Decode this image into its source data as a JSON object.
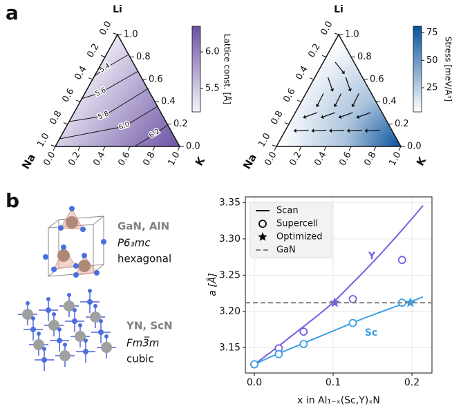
{
  "panel_labels": [
    "a",
    "b"
  ],
  "structures": [
    {
      "compounds": "GaN, AlN",
      "space_group": "P6₃mc",
      "system": "hexagonal"
    },
    {
      "compounds": "YN, ScN",
      "space_group": "Fm3̅m",
      "system": "cubic"
    }
  ],
  "chart_data": [
    {
      "type": "ternary",
      "corners": {
        "top": "Li",
        "left": "Na",
        "right": "K"
      },
      "ticks": [
        {
          "value": 0,
          "label": "0.0"
        },
        0.2,
        0.4,
        0.6,
        0.8,
        {
          "value": 1,
          "label": "1.0"
        }
      ],
      "fill": "linear",
      "colors": [
        "#f7f5fb",
        "#6a51a3"
      ],
      "contours": [
        5.4,
        5.6,
        5.8,
        {
          "value": 6.0,
          "label": "6.0"
        },
        6.2
      ],
      "colorbar": {
        "label": "Lattice const. [Å]",
        "clim": [
          5.18,
          6.35
        ],
        "ticks": [
          5.5,
          {
            "value": 6.0,
            "label": "6.0"
          }
        ]
      }
    },
    {
      "type": "ternary",
      "corners": {
        "top": "Li",
        "left": "Na",
        "right": "K"
      },
      "ticks": [
        {
          "value": 0,
          "label": "0.0"
        },
        0.2,
        0.4,
        0.6,
        0.8,
        {
          "value": 1,
          "label": "1.0"
        }
      ],
      "fill": "radial",
      "colors": [
        "#ffffff",
        "#08519c"
      ],
      "arrows": true,
      "colorbar": {
        "label": "Stress [meV/Å³]",
        "clim": [
          3,
          81
        ],
        "ticks": [
          25,
          50,
          75
        ]
      }
    },
    {
      "type": "line",
      "xlabel": "x in Al₁₋ₓ(Sc,Y)ₓN",
      "ylabel": "a [Å]",
      "xlim": [
        -0.0114,
        0.2254
      ],
      "ylim": [
        3.115,
        3.358
      ],
      "xticks": [
        {
          "value": 0,
          "label": "0.0"
        },
        0.1,
        0.2
      ],
      "yticks": [
        3.15,
        {
          "value": 3.2,
          "label": "3.20"
        },
        3.25,
        {
          "value": 3.3,
          "label": "3.30"
        },
        3.35
      ],
      "grid": true,
      "legend": "upper left",
      "series": [
        {
          "name": "Scan",
          "style": "line",
          "color": "#000000",
          "sets": [
            {
              "label": "Y",
              "color": "#7360e0",
              "x": [
                0,
                0.02,
                0.04,
                0.06,
                0.08,
                0.1,
                0.12,
                0.14,
                0.16,
                0.18,
                0.2,
                0.214
              ],
              "values": [
                3.127,
                3.143,
                3.16,
                3.177,
                3.194,
                3.212,
                3.234,
                3.256,
                3.279,
                3.303,
                3.328,
                3.346
              ]
            },
            {
              "label": "Sc",
              "color": "#3b9ee5",
              "x": [
                0,
                0.02,
                0.04,
                0.06,
                0.08,
                0.1,
                0.12,
                0.14,
                0.16,
                0.18,
                0.2,
                0.214
              ],
              "values": [
                3.127,
                3.137,
                3.146,
                3.155,
                3.164,
                3.173,
                3.182,
                3.191,
                3.199,
                3.207,
                3.214,
                3.22
              ]
            }
          ]
        },
        {
          "name": "Supercell",
          "style": "circle",
          "color": "#000000",
          "sets": [
            {
              "color": "#7360e0",
              "x": [
                0,
                0.031,
                0.0625,
                0.125,
                0.1875
              ],
              "values": [
                3.127,
                3.149,
                3.172,
                3.217,
                3.271
              ]
            },
            {
              "color": "#3b9ee5",
              "x": [
                0,
                0.031,
                0.0625,
                0.125,
                0.1875
              ],
              "values": [
                3.127,
                3.141,
                3.155,
                3.184,
                3.212
              ]
            }
          ]
        },
        {
          "name": "Optimized",
          "style": "star",
          "color": "#000000",
          "sets": [
            {
              "color": "#7360e0",
              "x": [
                0.102
              ],
              "values": [
                3.212
              ]
            },
            {
              "color": "#3b9ee5",
              "x": [
                0.198
              ],
              "values": [
                3.212
              ]
            }
          ]
        },
        {
          "name": "GaN",
          "style": "dashed",
          "color": "#808080",
          "value": 3.212
        }
      ]
    }
  ]
}
